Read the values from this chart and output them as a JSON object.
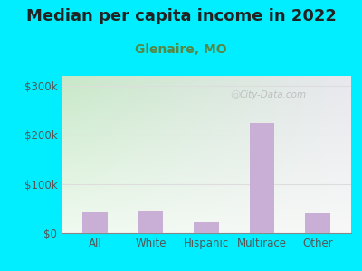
{
  "title": "Median per capita income in 2022",
  "subtitle": "Glenaire, MO",
  "categories": [
    "All",
    "White",
    "Hispanic",
    "Multirace",
    "Other"
  ],
  "values": [
    42000,
    45000,
    22000,
    225000,
    40000
  ],
  "bar_color": "#c9aed6",
  "title_fontsize": 13,
  "subtitle_fontsize": 10,
  "subtitle_color": "#558844",
  "title_color": "#222222",
  "ylabel_ticks": [
    0,
    100000,
    200000,
    300000
  ],
  "ylabel_labels": [
    "$0",
    "$100k",
    "$200k",
    "$300k"
  ],
  "ylim": [
    0,
    320000
  ],
  "bg_outer": "#00eeff",
  "bg_plot_topleft": "#c8e8c8",
  "bg_plot_topright": "#e8e8ee",
  "bg_plot_bottom": "#f0faf0",
  "watermark": "City-Data.com",
  "tick_color": "#555555",
  "grid_color": "#dddddd"
}
